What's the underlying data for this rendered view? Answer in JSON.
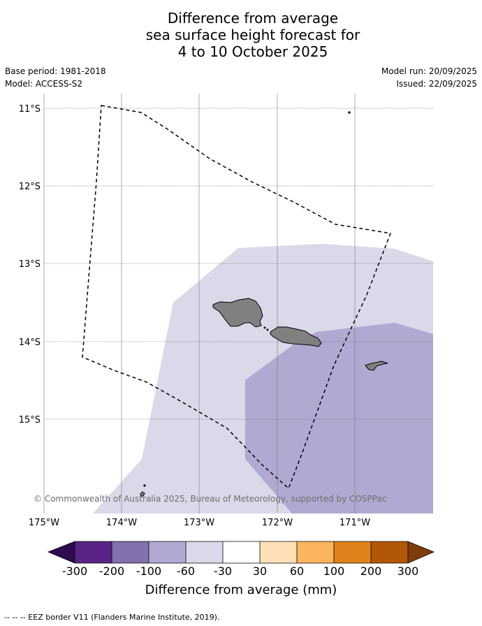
{
  "title": {
    "line1": "Difference from average",
    "line2": "sea surface height forecast for",
    "line3": "4 to 10 October 2025"
  },
  "meta": {
    "base_period": "Base period: 1981-2018",
    "model": "Model: ACCESS-S2",
    "model_run": "Model run: 20/09/2025",
    "issued": "Issued: 22/09/2025"
  },
  "map": {
    "lat_labels": [
      "11°S",
      "12°S",
      "13°S",
      "14°S",
      "15°S"
    ],
    "lon_labels": [
      "175°W",
      "174°W",
      "173°W",
      "172°W",
      "171°W"
    ],
    "copyright": "© Commonwealth of Australia 2025, Bureau of Meteorology, supported by COSPPac",
    "colors": {
      "category_light": "#d9d9ea",
      "category_mid": "#b1a9d2",
      "land": "#808080",
      "eez_border": "#000000"
    }
  },
  "colorbar": {
    "tick_labels": [
      "-300",
      "-200",
      "-100",
      "-60",
      "-30",
      "30",
      "60",
      "100",
      "200",
      "300"
    ],
    "colors": [
      "#2d0b4e",
      "#5a2486",
      "#8271ac",
      "#b1a9d2",
      "#d9d9ea",
      "#ffffff",
      "#fee0b6",
      "#fbb55f",
      "#e0821b",
      "#b25708",
      "#7f3b08"
    ],
    "label": "Difference from average (mm)"
  },
  "footer": {
    "legend": "--  --  -- EEZ border V11 (Flanders Marine Institute, 2019)."
  }
}
